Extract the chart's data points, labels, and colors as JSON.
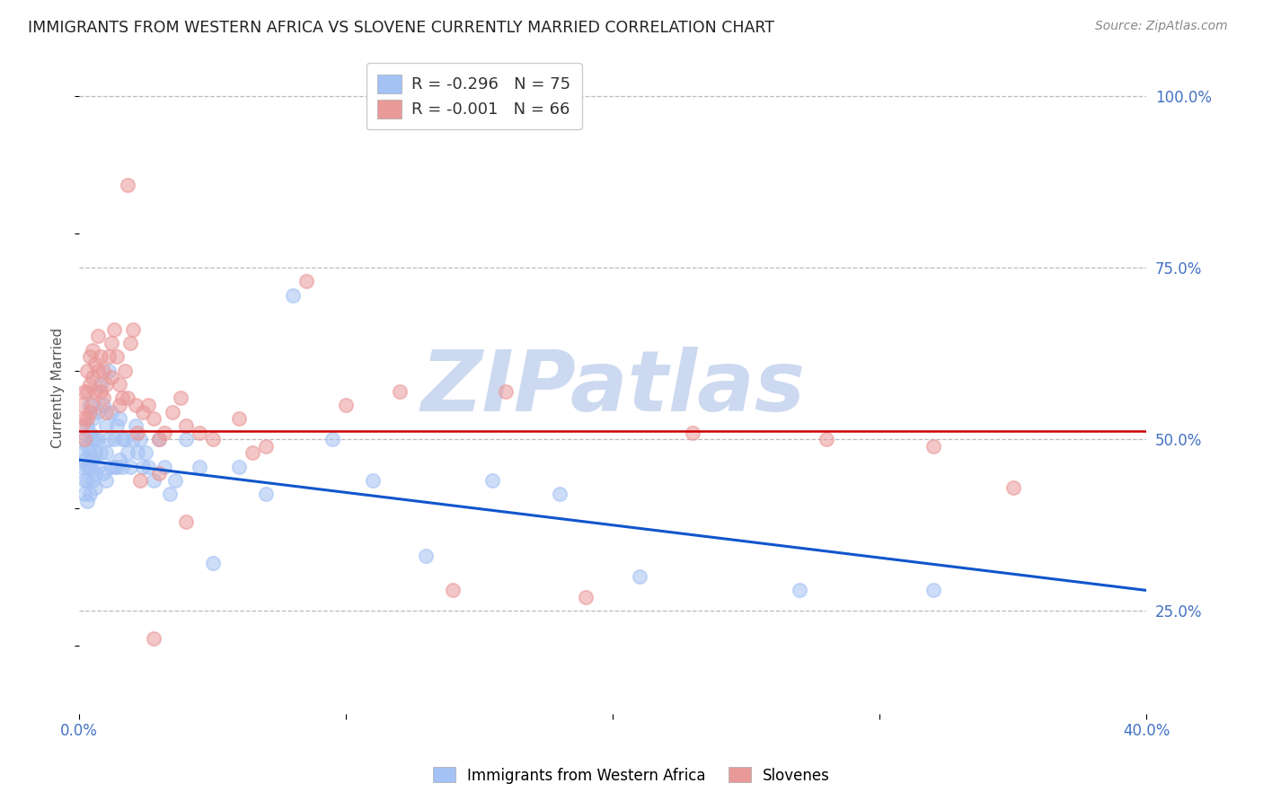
{
  "title": "IMMIGRANTS FROM WESTERN AFRICA VS SLOVENE CURRENTLY MARRIED CORRELATION CHART",
  "source": "Source: ZipAtlas.com",
  "ylabel": "Currently Married",
  "ylabel_right_labels": [
    "100.0%",
    "75.0%",
    "50.0%",
    "25.0%"
  ],
  "ylabel_right_values": [
    1.0,
    0.75,
    0.5,
    0.25
  ],
  "blue_color": "#a4c2f4",
  "pink_color": "#ea9999",
  "blue_line_color": "#1155cc",
  "pink_line_color": "#cc0000",
  "axis_label_color": "#4472c4",
  "source_color": "#888888",
  "title_color": "#222222",
  "watermark": "ZIPatlas",
  "watermark_color": "#ccd9f0",
  "blue_scatter_x": [
    0.001,
    0.001,
    0.002,
    0.002,
    0.002,
    0.002,
    0.003,
    0.003,
    0.003,
    0.003,
    0.003,
    0.004,
    0.004,
    0.004,
    0.004,
    0.004,
    0.005,
    0.005,
    0.005,
    0.005,
    0.006,
    0.006,
    0.006,
    0.006,
    0.007,
    0.007,
    0.007,
    0.008,
    0.008,
    0.009,
    0.009,
    0.01,
    0.01,
    0.01,
    0.011,
    0.011,
    0.012,
    0.012,
    0.013,
    0.013,
    0.014,
    0.014,
    0.015,
    0.015,
    0.016,
    0.016,
    0.017,
    0.018,
    0.019,
    0.02,
    0.021,
    0.022,
    0.023,
    0.024,
    0.025,
    0.026,
    0.028,
    0.03,
    0.032,
    0.034,
    0.036,
    0.04,
    0.045,
    0.05,
    0.06,
    0.07,
    0.08,
    0.095,
    0.11,
    0.13,
    0.155,
    0.18,
    0.21,
    0.27,
    0.32
  ],
  "blue_scatter_y": [
    0.48,
    0.46,
    0.5,
    0.47,
    0.44,
    0.42,
    0.52,
    0.49,
    0.46,
    0.44,
    0.41,
    0.55,
    0.51,
    0.48,
    0.46,
    0.42,
    0.53,
    0.5,
    0.47,
    0.44,
    0.5,
    0.48,
    0.45,
    0.43,
    0.54,
    0.5,
    0.46,
    0.58,
    0.48,
    0.55,
    0.45,
    0.52,
    0.48,
    0.44,
    0.6,
    0.5,
    0.54,
    0.46,
    0.5,
    0.46,
    0.52,
    0.46,
    0.53,
    0.47,
    0.5,
    0.46,
    0.5,
    0.48,
    0.46,
    0.5,
    0.52,
    0.48,
    0.5,
    0.46,
    0.48,
    0.46,
    0.44,
    0.5,
    0.46,
    0.42,
    0.44,
    0.5,
    0.46,
    0.32,
    0.46,
    0.42,
    0.71,
    0.5,
    0.44,
    0.33,
    0.44,
    0.42,
    0.3,
    0.28,
    0.28
  ],
  "pink_scatter_x": [
    0.001,
    0.001,
    0.002,
    0.002,
    0.002,
    0.003,
    0.003,
    0.003,
    0.004,
    0.004,
    0.004,
    0.005,
    0.005,
    0.005,
    0.006,
    0.006,
    0.007,
    0.007,
    0.008,
    0.008,
    0.009,
    0.009,
    0.01,
    0.01,
    0.011,
    0.012,
    0.012,
    0.013,
    0.014,
    0.015,
    0.016,
    0.017,
    0.018,
    0.019,
    0.02,
    0.021,
    0.022,
    0.024,
    0.026,
    0.028,
    0.03,
    0.032,
    0.035,
    0.038,
    0.04,
    0.045,
    0.05,
    0.06,
    0.07,
    0.085,
    0.1,
    0.12,
    0.14,
    0.16,
    0.19,
    0.23,
    0.28,
    0.32,
    0.35,
    0.04,
    0.065,
    0.028,
    0.018,
    0.023,
    0.03,
    0.015
  ],
  "pink_scatter_y": [
    0.55,
    0.52,
    0.57,
    0.53,
    0.5,
    0.6,
    0.57,
    0.53,
    0.62,
    0.58,
    0.54,
    0.63,
    0.59,
    0.55,
    0.61,
    0.57,
    0.65,
    0.6,
    0.62,
    0.57,
    0.6,
    0.56,
    0.58,
    0.54,
    0.62,
    0.64,
    0.59,
    0.66,
    0.62,
    0.58,
    0.56,
    0.6,
    0.56,
    0.64,
    0.66,
    0.55,
    0.51,
    0.54,
    0.55,
    0.53,
    0.45,
    0.51,
    0.54,
    0.56,
    0.52,
    0.51,
    0.5,
    0.53,
    0.49,
    0.73,
    0.55,
    0.57,
    0.28,
    0.57,
    0.27,
    0.51,
    0.5,
    0.49,
    0.43,
    0.38,
    0.48,
    0.21,
    0.87,
    0.44,
    0.5,
    0.55
  ],
  "xlim": [
    0.0,
    0.4
  ],
  "ylim": [
    0.1,
    1.05
  ],
  "blue_trend_x": [
    0.0,
    0.4
  ],
  "blue_trend_y": [
    0.47,
    0.28
  ],
  "pink_trend_y": [
    0.512,
    0.512
  ],
  "legend_blue_label": "Immigrants from Western Africa",
  "legend_pink_label": "Slovenes",
  "legend_r1": "R = -0.296",
  "legend_n1": "N = 75",
  "legend_r2": "R = -0.001",
  "legend_n2": "N = 66"
}
